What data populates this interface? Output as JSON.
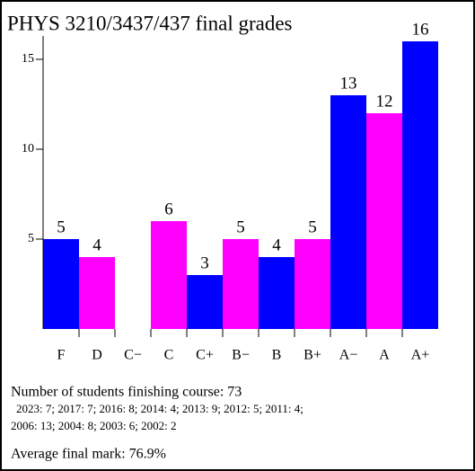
{
  "chart_data": {
    "type": "bar",
    "title": "PHYS 3210/3437/437 final grades",
    "categories": [
      "F",
      "D",
      "C−",
      "C",
      "C+",
      "B−",
      "B",
      "B+",
      "A−",
      "A",
      "A+"
    ],
    "values": [
      5,
      4,
      0,
      6,
      3,
      5,
      4,
      5,
      13,
      12,
      16
    ],
    "colors": [
      "#0000ff",
      "#ff00ff",
      "#0000ff",
      "#ff00ff",
      "#0000ff",
      "#ff00ff",
      "#0000ff",
      "#ff00ff",
      "#0000ff",
      "#ff00ff",
      "#0000ff"
    ],
    "ylim": [
      0,
      16
    ],
    "yticks": [
      5,
      10,
      15
    ]
  },
  "notes": {
    "students": "Number of students finishing course: 73",
    "breakdown": [
      "2023: 7; 2017: 7; 2016: 8; 2014: 4; 2013: 9; 2012: 5; 2011: 4;",
      "2006: 13; 2004: 8; 2003: 6; 2002: 2"
    ],
    "average": "Average final mark: 76.9%"
  }
}
